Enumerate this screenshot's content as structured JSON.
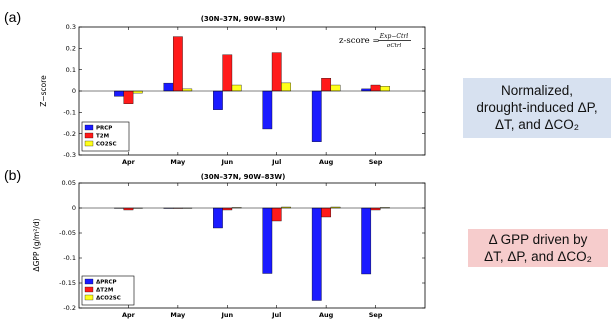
{
  "panels": [
    {
      "label": "(a)",
      "title": "(30N–37N, 90W–83W)",
      "ylabel": "Z−score"
    },
    {
      "label": "(b)",
      "title": "(30N–37N, 90W–83W)",
      "ylabel": "ΔGPP (g/m²/d)"
    }
  ],
  "formula": {
    "lhs": "z-score =",
    "numerator": "Exp−Ctrl",
    "denominator": "σCtrl"
  },
  "callouts": {
    "a": [
      "Normalized,",
      "drought-induced ΔP,",
      "ΔT, and ΔCO₂"
    ],
    "b": [
      "Δ GPP driven by",
      "ΔT, ΔP, and ΔCO₂"
    ]
  },
  "colors": {
    "PRCP": "#1a1aff",
    "T2M": "#ff1a1a",
    "CO2SC": "#ffff1a"
  },
  "chart_data": [
    {
      "type": "bar",
      "title": "(30N–37N, 90W–83W)",
      "xlabel": "",
      "ylabel": "Z−score",
      "categories": [
        "Apr",
        "May",
        "Jun",
        "Jul",
        "Aug",
        "Sep"
      ],
      "ylim": [
        -0.3,
        0.3
      ],
      "yticks": [
        -0.3,
        -0.2,
        -0.1,
        0,
        0.1,
        0.2,
        0.3
      ],
      "ytick_labels": [
        "-0.3",
        "-0.2",
        "-0.1",
        "0",
        "0.1",
        "0.2",
        "0.3"
      ],
      "grid": false,
      "legend": "bottom-left",
      "series": [
        {
          "name": "PRCP",
          "color": "#1a1aff",
          "values": [
            -0.025,
            0.037,
            -0.088,
            -0.178,
            -0.238,
            0.01
          ]
        },
        {
          "name": "T2M",
          "color": "#ff1a1a",
          "values": [
            -0.06,
            0.255,
            0.17,
            0.18,
            0.06,
            0.028
          ]
        },
        {
          "name": "CO2SC",
          "color": "#ffff1a",
          "values": [
            -0.01,
            0.01,
            0.028,
            0.038,
            0.028,
            0.022
          ]
        }
      ]
    },
    {
      "type": "bar",
      "title": "(30N–37N, 90W–83W)",
      "xlabel": "",
      "ylabel": "ΔGPP (g/m²/d)",
      "categories": [
        "Apr",
        "May",
        "Jun",
        "Jul",
        "Aug",
        "Sep"
      ],
      "ylim": [
        -0.2,
        0.05
      ],
      "yticks": [
        -0.2,
        -0.15,
        -0.1,
        -0.05,
        0,
        0.05
      ],
      "ytick_labels": [
        "-0.2",
        "-0.15",
        "-0.1",
        "-0.05",
        "0",
        "0.05"
      ],
      "grid": false,
      "legend": "bottom-left",
      "series": [
        {
          "name": "ΔPRCP",
          "color": "#1a1aff",
          "values": [
            0.0,
            -0.001,
            -0.04,
            -0.131,
            -0.185,
            -0.132
          ]
        },
        {
          "name": "ΔT2M",
          "color": "#ff1a1a",
          "values": [
            -0.004,
            -0.001,
            -0.004,
            -0.026,
            -0.018,
            -0.004
          ]
        },
        {
          "name": "ΔCO2SC",
          "color": "#ffff1a",
          "values": [
            0.0,
            0.0,
            0.001,
            0.002,
            0.002,
            0.001
          ]
        }
      ]
    }
  ]
}
